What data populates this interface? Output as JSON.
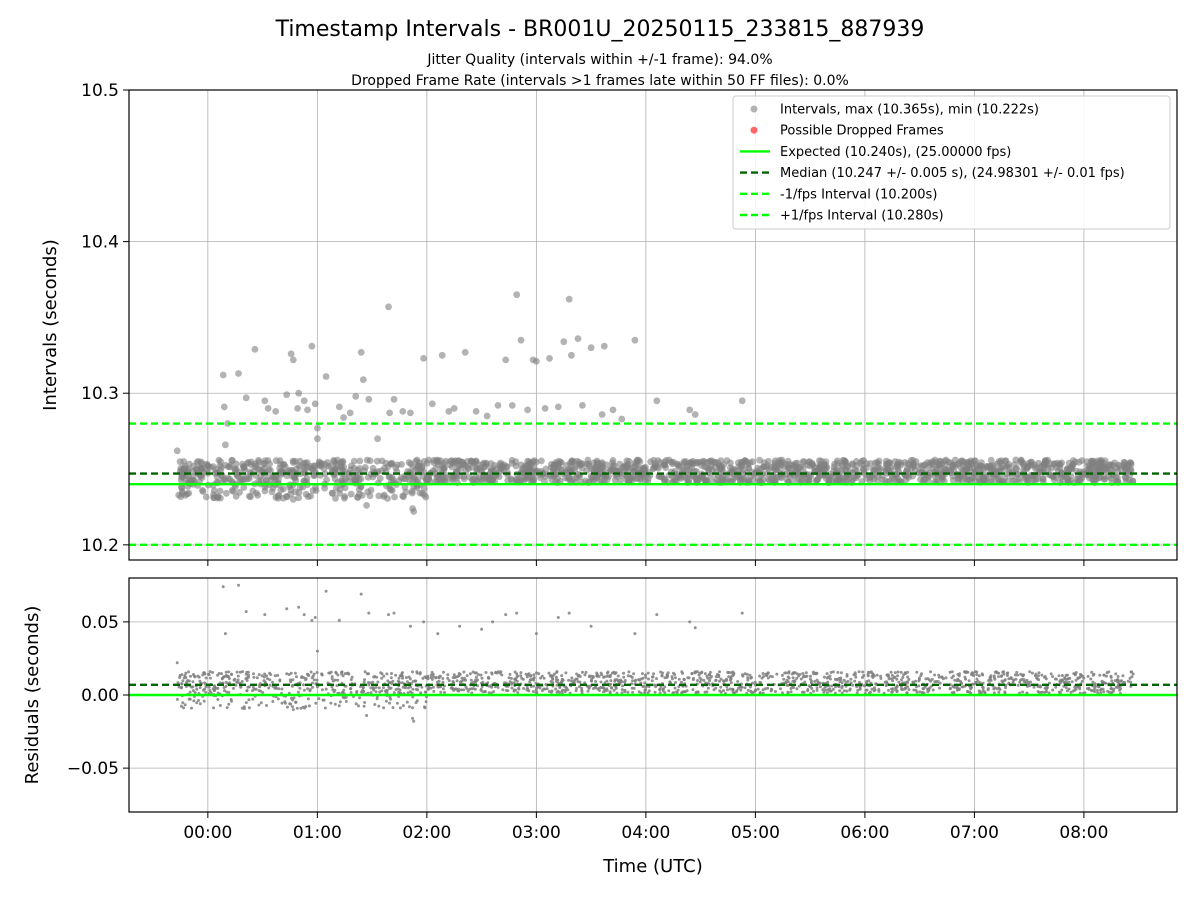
{
  "chart_data": [
    {
      "type": "scatter",
      "title": "Timestamp Intervals - BR001U_20250115_233815_887939",
      "subtitle_lines": [
        "Jitter Quality (intervals within +/-1 frame): 94.0%",
        "Dropped Frame Rate (intervals >1 frames late within 50 FF files): 0.0%"
      ],
      "ylabel": "Intervals (seconds)",
      "ylim": [
        10.19,
        10.5
      ],
      "yticks": [
        "10.2",
        "10.3",
        "10.4",
        "10.5"
      ],
      "ytick_values": [
        10.2,
        10.3,
        10.4,
        10.5
      ],
      "x_units": "hours since 00:00 UTC",
      "xlim": [
        -0.72,
        8.85
      ],
      "grid": true,
      "legend_position": "upper right",
      "legend": [
        {
          "label": "Intervals, max (10.365s), min (10.222s)",
          "kind": "marker",
          "color": "#808080"
        },
        {
          "label": "Possible Dropped Frames",
          "kind": "marker",
          "color": "#ff0000"
        },
        {
          "label": "Expected (10.240s), (25.00000 fps)",
          "kind": "line",
          "color": "#00ff00"
        },
        {
          "label": "Median (10.247 +/- 0.005 s), (24.98301 +/- 0.01 fps)",
          "kind": "dashed",
          "color": "#006400"
        },
        {
          "label": "-1/fps Interval (10.200s)",
          "kind": "dashed",
          "color": "#00ff00"
        },
        {
          "label": "+1/fps Interval (10.280s)",
          "kind": "dashed",
          "color": "#00ff00"
        }
      ],
      "hlines": [
        {
          "name": "Expected",
          "y": 10.24,
          "style": "solid",
          "color": "#00ff00"
        },
        {
          "name": "Median",
          "y": 10.247,
          "style": "dashed",
          "color": "#006400"
        },
        {
          "name": "-1/fps Interval",
          "y": 10.2,
          "style": "dashed",
          "color": "#00ff00"
        },
        {
          "name": "+1/fps Interval",
          "y": 10.28,
          "style": "dashed",
          "color": "#00ff00"
        }
      ],
      "series": [
        {
          "name": "Intervals",
          "color": "#808080",
          "band": {
            "x_range": [
              -0.28,
              8.45
            ],
            "y_range": [
              10.241,
              10.256
            ],
            "approx_points": 1800
          },
          "points": [
            [
              -0.28,
              10.262
            ],
            [
              -0.22,
              10.255
            ],
            [
              -0.18,
              10.249
            ],
            [
              0.14,
              10.312
            ],
            [
              0.15,
              10.291
            ],
            [
              0.16,
              10.266
            ],
            [
              0.18,
              10.28
            ],
            [
              0.28,
              10.313
            ],
            [
              0.35,
              10.297
            ],
            [
              0.43,
              10.329
            ],
            [
              0.52,
              10.295
            ],
            [
              0.55,
              10.29
            ],
            [
              0.62,
              10.288
            ],
            [
              0.72,
              10.299
            ],
            [
              0.76,
              10.326
            ],
            [
              0.78,
              10.322
            ],
            [
              0.82,
              10.29
            ],
            [
              0.78,
              10.23
            ],
            [
              0.8,
              10.235
            ],
            [
              0.83,
              10.3
            ],
            [
              0.88,
              10.295
            ],
            [
              0.91,
              10.289
            ],
            [
              0.95,
              10.331
            ],
            [
              0.98,
              10.293
            ],
            [
              1.0,
              10.27
            ],
            [
              1.0,
              10.277
            ],
            [
              1.08,
              10.311
            ],
            [
              1.2,
              10.291
            ],
            [
              1.24,
              10.284
            ],
            [
              1.3,
              10.287
            ],
            [
              1.35,
              10.298
            ],
            [
              1.4,
              10.327
            ],
            [
              1.42,
              10.309
            ],
            [
              1.45,
              10.226
            ],
            [
              1.47,
              10.296
            ],
            [
              1.55,
              10.27
            ],
            [
              1.65,
              10.357
            ],
            [
              1.66,
              10.287
            ],
            [
              1.7,
              10.296
            ],
            [
              1.78,
              10.288
            ],
            [
              1.85,
              10.287
            ],
            [
              1.87,
              10.224
            ],
            [
              1.88,
              10.222
            ],
            [
              1.97,
              10.323
            ],
            [
              2.05,
              10.293
            ],
            [
              2.14,
              10.325
            ],
            [
              2.2,
              10.288
            ],
            [
              2.25,
              10.29
            ],
            [
              2.35,
              10.327
            ],
            [
              2.45,
              10.288
            ],
            [
              2.55,
              10.285
            ],
            [
              2.65,
              10.292
            ],
            [
              2.72,
              10.322
            ],
            [
              2.78,
              10.292
            ],
            [
              2.82,
              10.365
            ],
            [
              2.86,
              10.335
            ],
            [
              2.92,
              10.289
            ],
            [
              2.97,
              10.322
            ],
            [
              3.0,
              10.321
            ],
            [
              3.08,
              10.29
            ],
            [
              3.12,
              10.323
            ],
            [
              3.2,
              10.291
            ],
            [
              3.25,
              10.334
            ],
            [
              3.3,
              10.362
            ],
            [
              3.32,
              10.325
            ],
            [
              3.38,
              10.336
            ],
            [
              3.42,
              10.292
            ],
            [
              3.5,
              10.33
            ],
            [
              3.6,
              10.286
            ],
            [
              3.62,
              10.331
            ],
            [
              3.7,
              10.289
            ],
            [
              3.78,
              10.283
            ],
            [
              3.9,
              10.335
            ],
            [
              4.1,
              10.295
            ],
            [
              4.4,
              10.289
            ],
            [
              4.45,
              10.286
            ],
            [
              4.88,
              10.295
            ]
          ]
        },
        {
          "name": "Possible Dropped Frames",
          "color": "#ff0000",
          "points": []
        }
      ]
    },
    {
      "type": "scatter",
      "ylabel": "Residuals (seconds)",
      "xlabel": "Time (UTC)",
      "ylim": [
        -0.08,
        0.08
      ],
      "yticks": [
        "−0.05",
        "0.00",
        "0.05"
      ],
      "ytick_values": [
        -0.05,
        0.0,
        0.05
      ],
      "xticks": [
        "00:00",
        "01:00",
        "02:00",
        "03:00",
        "04:00",
        "05:00",
        "06:00",
        "07:00",
        "08:00"
      ],
      "xtick_values": [
        0,
        1,
        2,
        3,
        4,
        5,
        6,
        7,
        8
      ],
      "xlim": [
        -0.72,
        8.85
      ],
      "grid": true,
      "hlines": [
        {
          "name": "Zero",
          "y": 0.0,
          "style": "solid",
          "color": "#00ff00"
        },
        {
          "name": "Median residual",
          "y": 0.007,
          "style": "dashed",
          "color": "#006400"
        }
      ],
      "series": [
        {
          "name": "Residuals",
          "color": "#808080",
          "band": {
            "x_range": [
              -0.28,
              8.45
            ],
            "y_range": [
              0.001,
              0.016
            ],
            "approx_points": 1800
          },
          "points": [
            [
              -0.28,
              0.022
            ],
            [
              0.14,
              0.074
            ],
            [
              0.16,
              0.042
            ],
            [
              0.28,
              0.075
            ],
            [
              0.35,
              0.057
            ],
            [
              0.52,
              0.055
            ],
            [
              0.72,
              0.059
            ],
            [
              0.78,
              -0.01
            ],
            [
              0.8,
              -0.005
            ],
            [
              0.83,
              0.06
            ],
            [
              0.88,
              0.055
            ],
            [
              0.95,
              0.051
            ],
            [
              0.98,
              0.053
            ],
            [
              1.0,
              0.03
            ],
            [
              1.08,
              0.071
            ],
            [
              1.2,
              0.051
            ],
            [
              1.4,
              0.069
            ],
            [
              1.45,
              -0.014
            ],
            [
              1.47,
              0.056
            ],
            [
              1.65,
              0.055
            ],
            [
              1.7,
              0.056
            ],
            [
              1.85,
              0.047
            ],
            [
              1.87,
              -0.016
            ],
            [
              1.88,
              -0.018
            ],
            [
              1.97,
              0.05
            ],
            [
              2.1,
              0.042
            ],
            [
              2.3,
              0.047
            ],
            [
              2.5,
              0.045
            ],
            [
              2.6,
              0.05
            ],
            [
              2.72,
              0.055
            ],
            [
              2.82,
              0.056
            ],
            [
              3.0,
              0.042
            ],
            [
              3.2,
              0.053
            ],
            [
              3.3,
              0.056
            ],
            [
              3.5,
              0.047
            ],
            [
              3.9,
              0.042
            ],
            [
              4.1,
              0.055
            ],
            [
              4.4,
              0.05
            ],
            [
              4.45,
              0.046
            ],
            [
              4.88,
              0.056
            ]
          ]
        }
      ]
    }
  ]
}
